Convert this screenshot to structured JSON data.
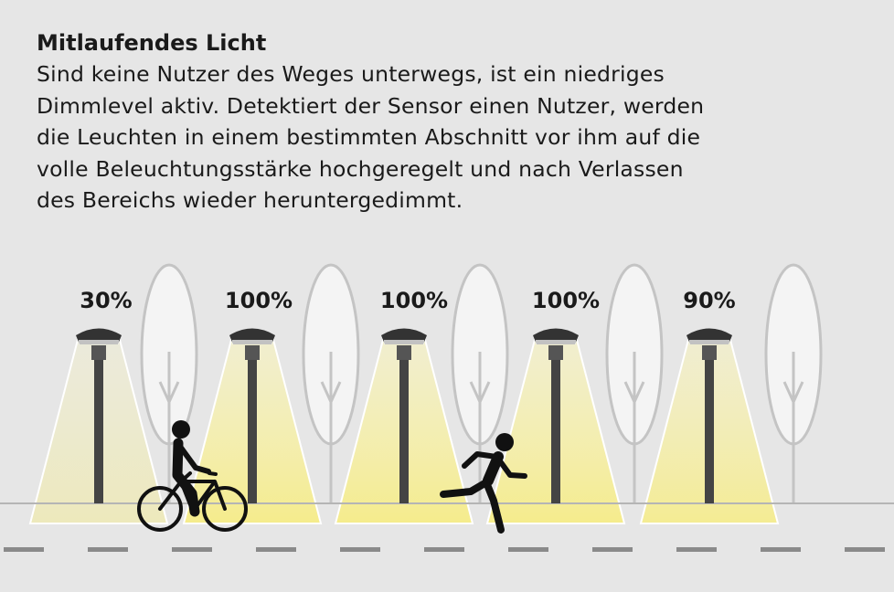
{
  "title": "Mitlaufendes Licht",
  "description_lines": [
    "Sind keine Nutzer des Weges unterwegs, ist ein niedriges",
    "Dimmlevel aktiv. Detektiert der Sensor einen Nutzer, werden",
    "die Leuchten in einem bestimmten Abschnitt vor ihm auf die",
    "volle Beleuchtungsstärke hochgeregelt und nach Verlassen",
    "des Bereichs wieder heruntergedimmt."
  ],
  "lamps": [
    {
      "label": "30%",
      "level": 0.3
    },
    {
      "label": "100%",
      "level": 1.0
    },
    {
      "label": "100%",
      "level": 1.0
    },
    {
      "label": "100%",
      "level": 1.0
    },
    {
      "label": "90%",
      "level": 0.9
    }
  ],
  "colors": {
    "background": "#e6e6e6",
    "light": "#f5ee9e",
    "pole": "#444444",
    "tree_outline": "#c4c4c4",
    "tree_fill": "#f4f4f4",
    "text": "#1a1a1a"
  },
  "figures": {
    "cyclist": "cyclist-icon",
    "runner": "runner-icon"
  }
}
